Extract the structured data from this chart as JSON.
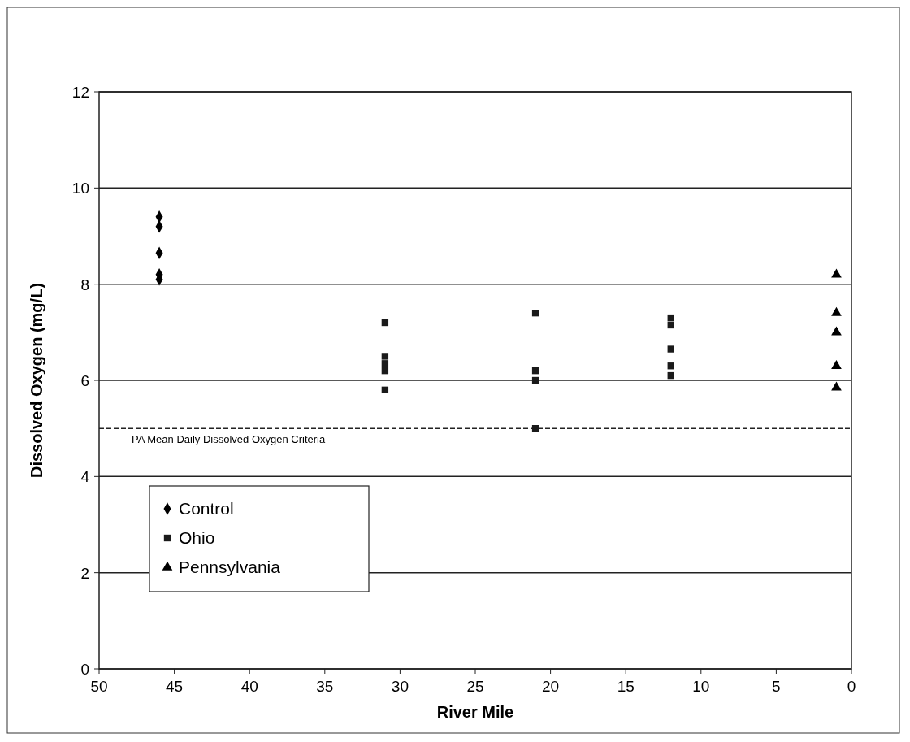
{
  "chart_data": {
    "type": "scatter",
    "xlabel": "River Mile",
    "ylabel": "Dissolved Oxygen (mg/L)",
    "xlim": [
      50,
      0
    ],
    "xticks": [
      50,
      45,
      40,
      35,
      30,
      25,
      20,
      15,
      10,
      5,
      0
    ],
    "ylim": [
      0,
      12
    ],
    "yticks": [
      0,
      2,
      4,
      6,
      8,
      10,
      12
    ],
    "grid": "y",
    "legend": "bottom left",
    "series": [
      {
        "name": "Control",
        "color": "#000000",
        "marker": "diamond",
        "x": [
          46,
          46,
          46,
          46,
          46
        ],
        "values": [
          9.4,
          9.2,
          8.65,
          8.2,
          8.1
        ]
      },
      {
        "name": "Ohio",
        "color": "#1a1a1a",
        "marker": "square",
        "x": [
          31,
          31,
          31,
          31,
          31,
          21,
          21,
          21,
          21,
          12,
          12,
          12,
          12,
          12
        ],
        "values": [
          7.2,
          6.5,
          6.35,
          6.2,
          5.8,
          7.4,
          6.2,
          6.0,
          5.0,
          7.3,
          7.15,
          6.65,
          6.3,
          6.1
        ]
      },
      {
        "name": "Pennsylvania",
        "color": "#000000",
        "marker": "triangle",
        "x": [
          1,
          1,
          1,
          1,
          1
        ],
        "values": [
          8.2,
          7.4,
          7.0,
          6.3,
          5.85
        ]
      }
    ],
    "ref_lines": [
      {
        "axis": "y",
        "value": 5,
        "label": "PA Mean Daily Dissolved Oxygen Criteria",
        "line_style": "dashed"
      }
    ]
  }
}
